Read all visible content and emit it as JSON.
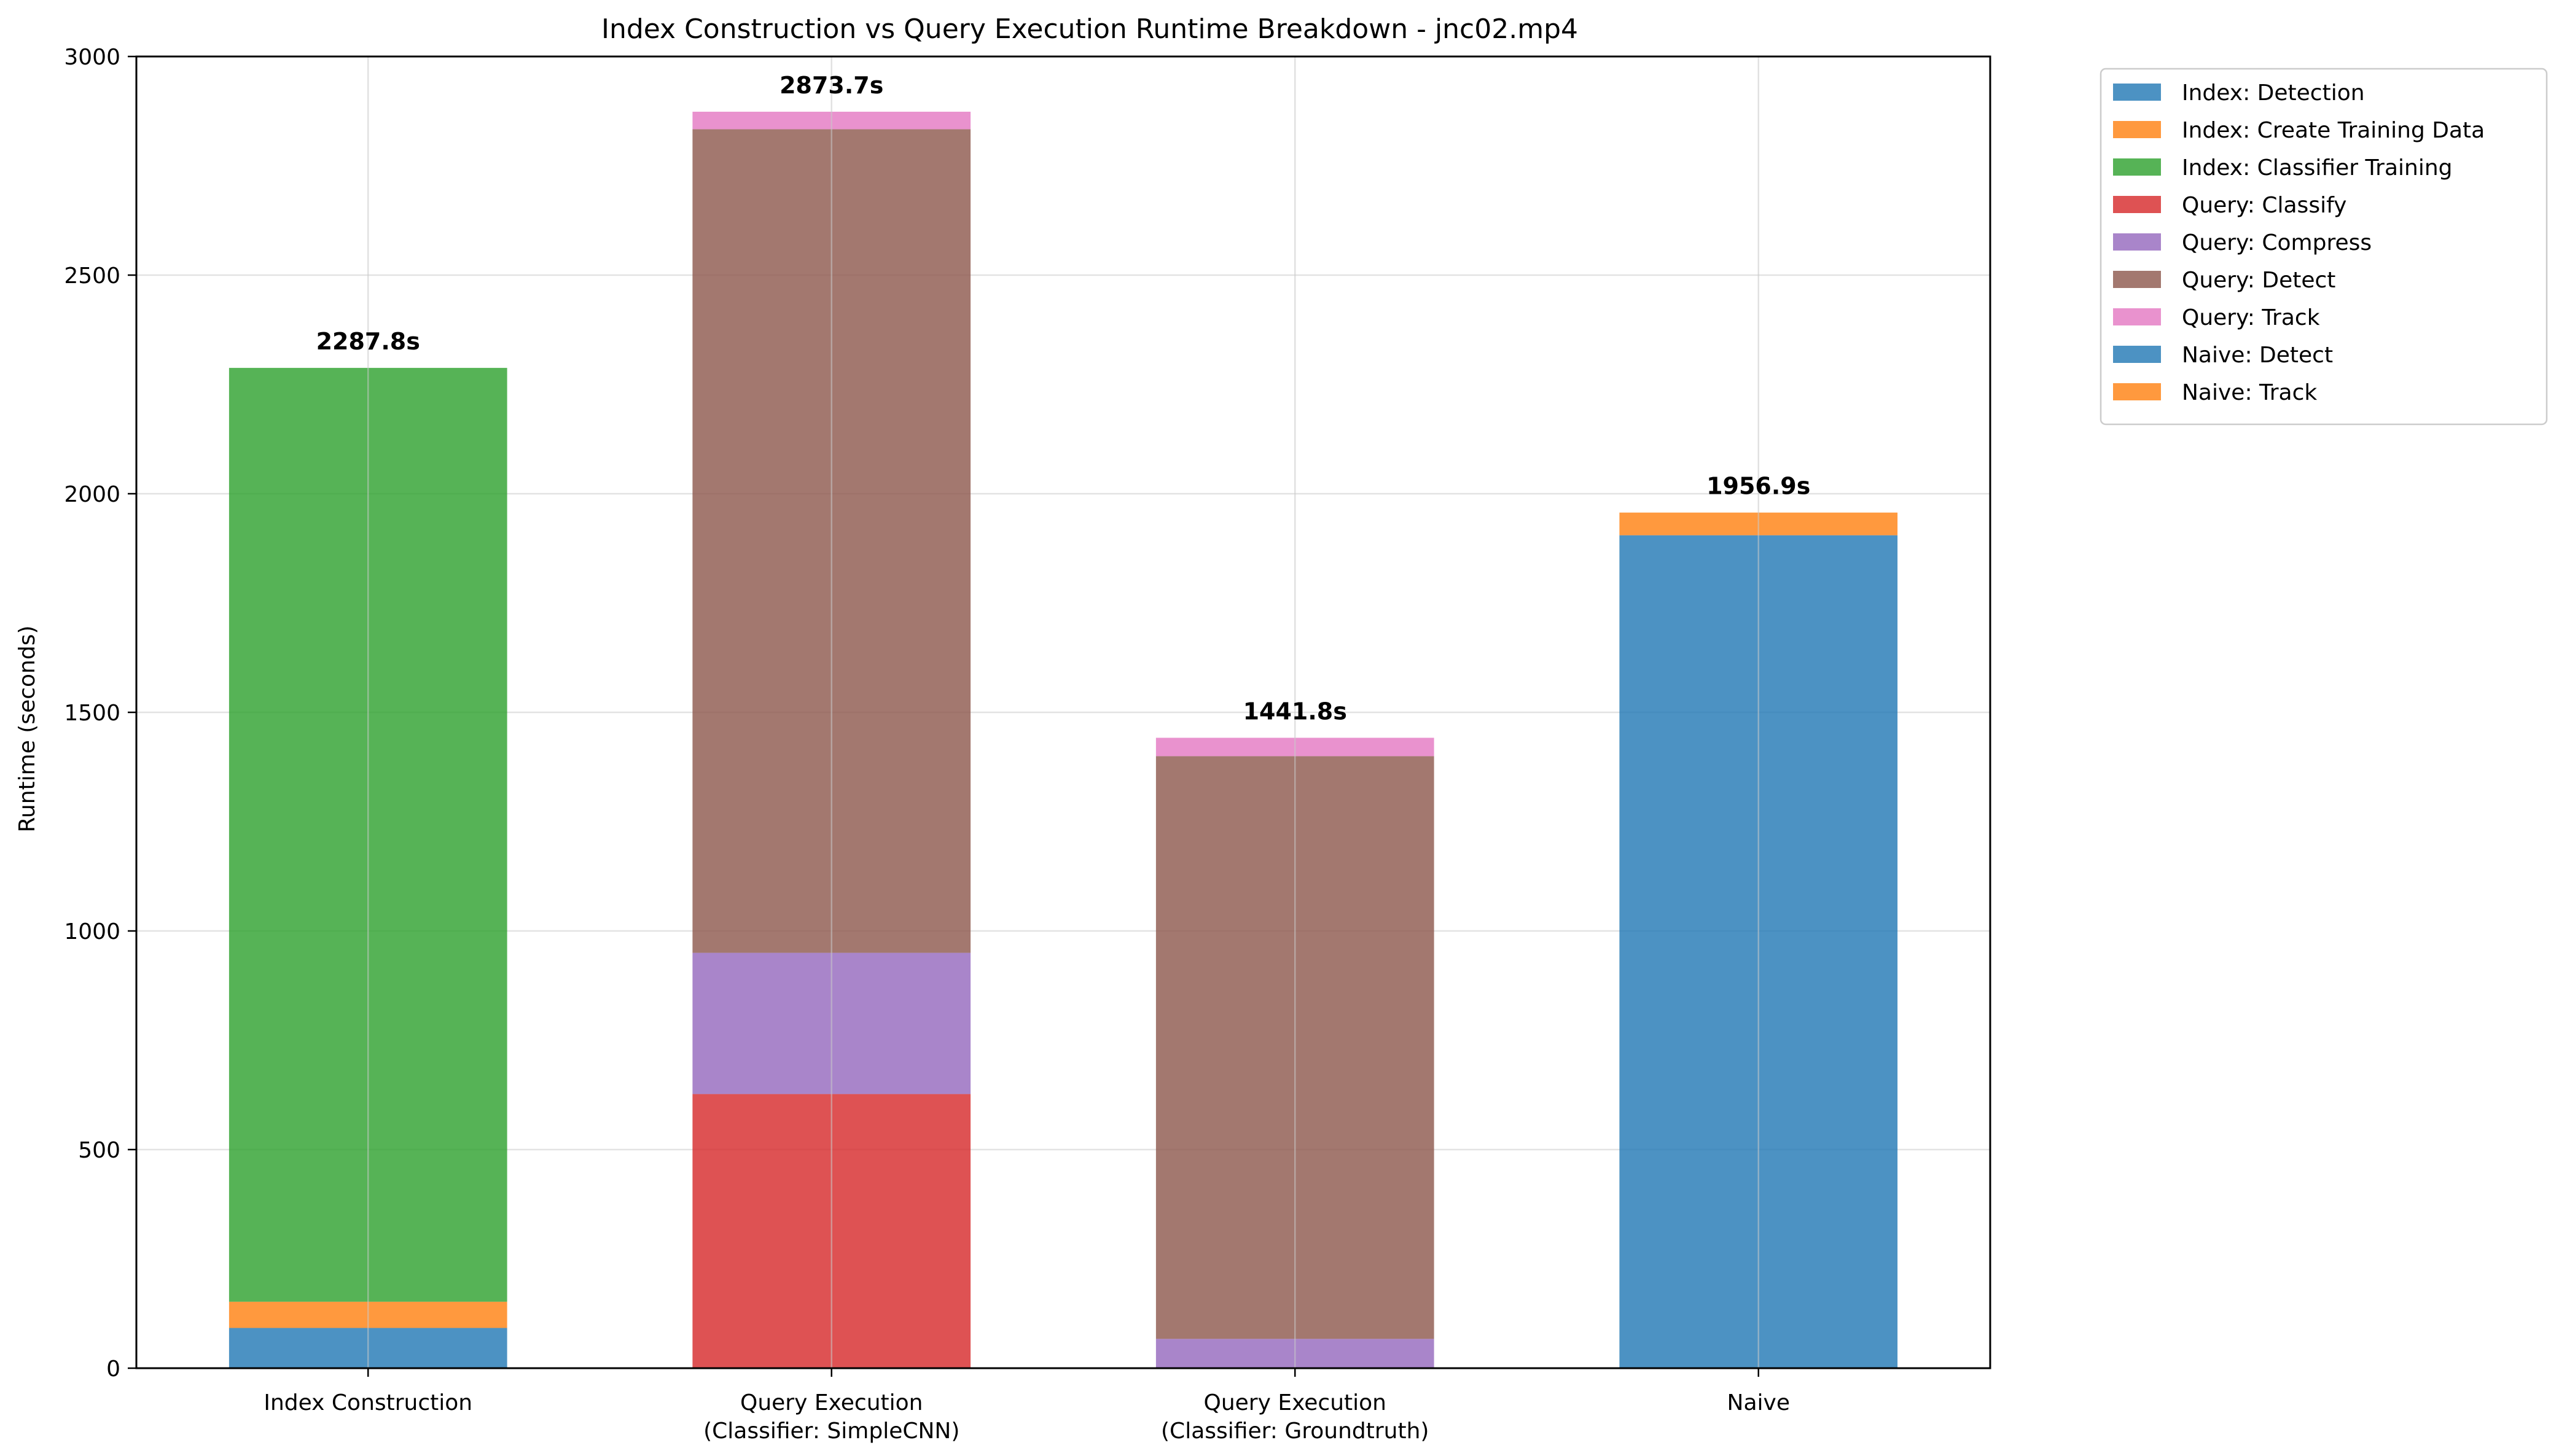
{
  "chart_data": {
    "type": "bar",
    "stacked": true,
    "title": "Index Construction vs Query Execution Runtime Breakdown - jnc02.mp4",
    "xlabel": "",
    "ylabel": "Runtime (seconds)",
    "ylim": [
      0,
      3000
    ],
    "yticks": [
      0,
      500,
      1000,
      1500,
      2000,
      2500,
      3000
    ],
    "grid": true,
    "legend_position": "outside-right-top",
    "categories": [
      [
        "Index Construction"
      ],
      [
        "Query Execution",
        "(Classifier: SimpleCNN)"
      ],
      [
        "Query Execution",
        "(Classifier: Groundtruth)"
      ],
      [
        "Naive"
      ]
    ],
    "totals": [
      "2287.8s",
      "2873.7s",
      "1441.8s",
      "1956.9s"
    ],
    "series": [
      {
        "name": "Index: Detection",
        "color": "#1f77b4",
        "values": [
          92,
          0,
          0,
          0
        ]
      },
      {
        "name": "Index: Create Training Data",
        "color": "#ff7f0e",
        "values": [
          60,
          0,
          0,
          0
        ]
      },
      {
        "name": "Index: Classifier Training",
        "color": "#2ca02c",
        "values": [
          2135.8,
          0,
          0,
          0
        ]
      },
      {
        "name": "Query: Classify",
        "color": "#d62728",
        "values": [
          0,
          627,
          0,
          0
        ]
      },
      {
        "name": "Query: Compress",
        "color": "#9467bd",
        "values": [
          0,
          323,
          67,
          0
        ]
      },
      {
        "name": "Query: Detect",
        "color": "#8c564b",
        "values": [
          0,
          1883.7,
          1332.8,
          0
        ]
      },
      {
        "name": "Query: Track",
        "color": "#e377c2",
        "values": [
          0,
          40,
          42,
          0
        ]
      },
      {
        "name": "Naive: Detect",
        "color": "#1f77b4",
        "values": [
          0,
          0,
          0,
          1905
        ]
      },
      {
        "name": "Naive: Track",
        "color": "#ff7f0e",
        "values": [
          0,
          0,
          0,
          51.9
        ]
      }
    ]
  }
}
